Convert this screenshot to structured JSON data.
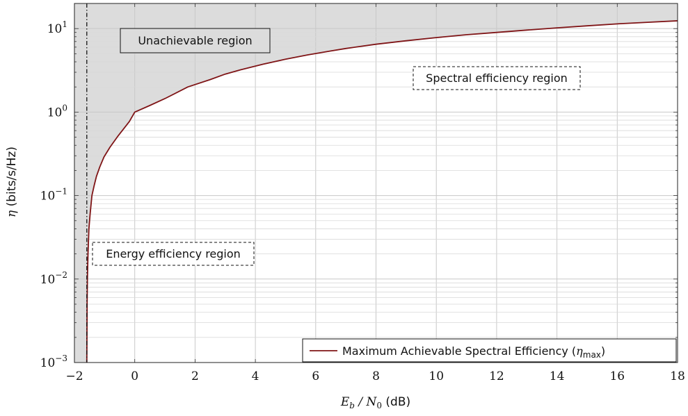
{
  "chart_data": {
    "type": "line",
    "title": "",
    "xlabel": {
      "prefix": "E",
      "prefix_sub": "b",
      "mid": " / N",
      "mid_sub": "0",
      "suffix": " (dB)"
    },
    "ylabel": {
      "symbol": "η",
      "suffix": " (bits/s/Hz)"
    },
    "xlim": [
      -2,
      18
    ],
    "ylim": [
      0.001,
      20
    ],
    "yscale": "log",
    "x_ticks": [
      "−2",
      "0",
      "2",
      "4",
      "6",
      "8",
      "10",
      "12",
      "14",
      "16",
      "18"
    ],
    "y_ticks": [
      {
        "base": "10",
        "exp": "−3",
        "value": 0.001
      },
      {
        "base": "10",
        "exp": "−2",
        "value": 0.01
      },
      {
        "base": "10",
        "exp": "−1",
        "value": 0.1
      },
      {
        "base": "10",
        "exp": "0",
        "value": 1
      },
      {
        "base": "10",
        "exp": "1",
        "value": 10
      }
    ],
    "grid": true,
    "shannon_limit_db": -1.59,
    "series": [
      {
        "name": "Maximum Achievable Spectral Efficiency (η max)",
        "color": "#7f1416",
        "x": [
          -1.59,
          -1.58,
          -1.57,
          -1.55,
          -1.52,
          -1.48,
          -1.42,
          -1.35,
          -1.27,
          -1.16,
          -1.02,
          -0.82,
          -0.55,
          -0.18,
          0.0,
          0.5,
          1.0,
          1.76,
          2.5,
          3.0,
          3.5,
          4.26,
          5.0,
          5.74,
          6.5,
          7.0,
          8.0,
          9.0,
          10.0,
          11.0,
          12.0,
          13.0,
          14.0,
          15.0,
          16.0,
          17.0,
          18.0
        ],
        "y": [
          0.001,
          0.005,
          0.01,
          0.02,
          0.04,
          0.06,
          0.1,
          0.13,
          0.17,
          0.22,
          0.29,
          0.38,
          0.52,
          0.77,
          1.0,
          1.2,
          1.45,
          2.0,
          2.45,
          2.85,
          3.2,
          3.75,
          4.3,
          4.85,
          5.4,
          5.78,
          6.5,
          7.15,
          7.8,
          8.45,
          9.0,
          9.6,
          10.2,
          10.8,
          11.4,
          11.9,
          12.4
        ]
      }
    ],
    "annotations": [
      {
        "id": "unachievable",
        "text": "Unachievable region",
        "style": "solid"
      },
      {
        "id": "spectral",
        "text": "Spectral efficiency region",
        "style": "dashed"
      },
      {
        "id": "energy",
        "text": "Energy efficiency region",
        "style": "dashed"
      }
    ],
    "legend": {
      "position": "bottom-right",
      "label_main": "Maximum Achievable Spectral Efficiency (",
      "label_symbol": "η",
      "label_sub": "max",
      "label_close": ")"
    },
    "colors": {
      "curve": "#7f1416",
      "shade": "#dcdcdc",
      "grid": "#c8c8c8",
      "minor_grid": "#d9d9d9"
    }
  }
}
